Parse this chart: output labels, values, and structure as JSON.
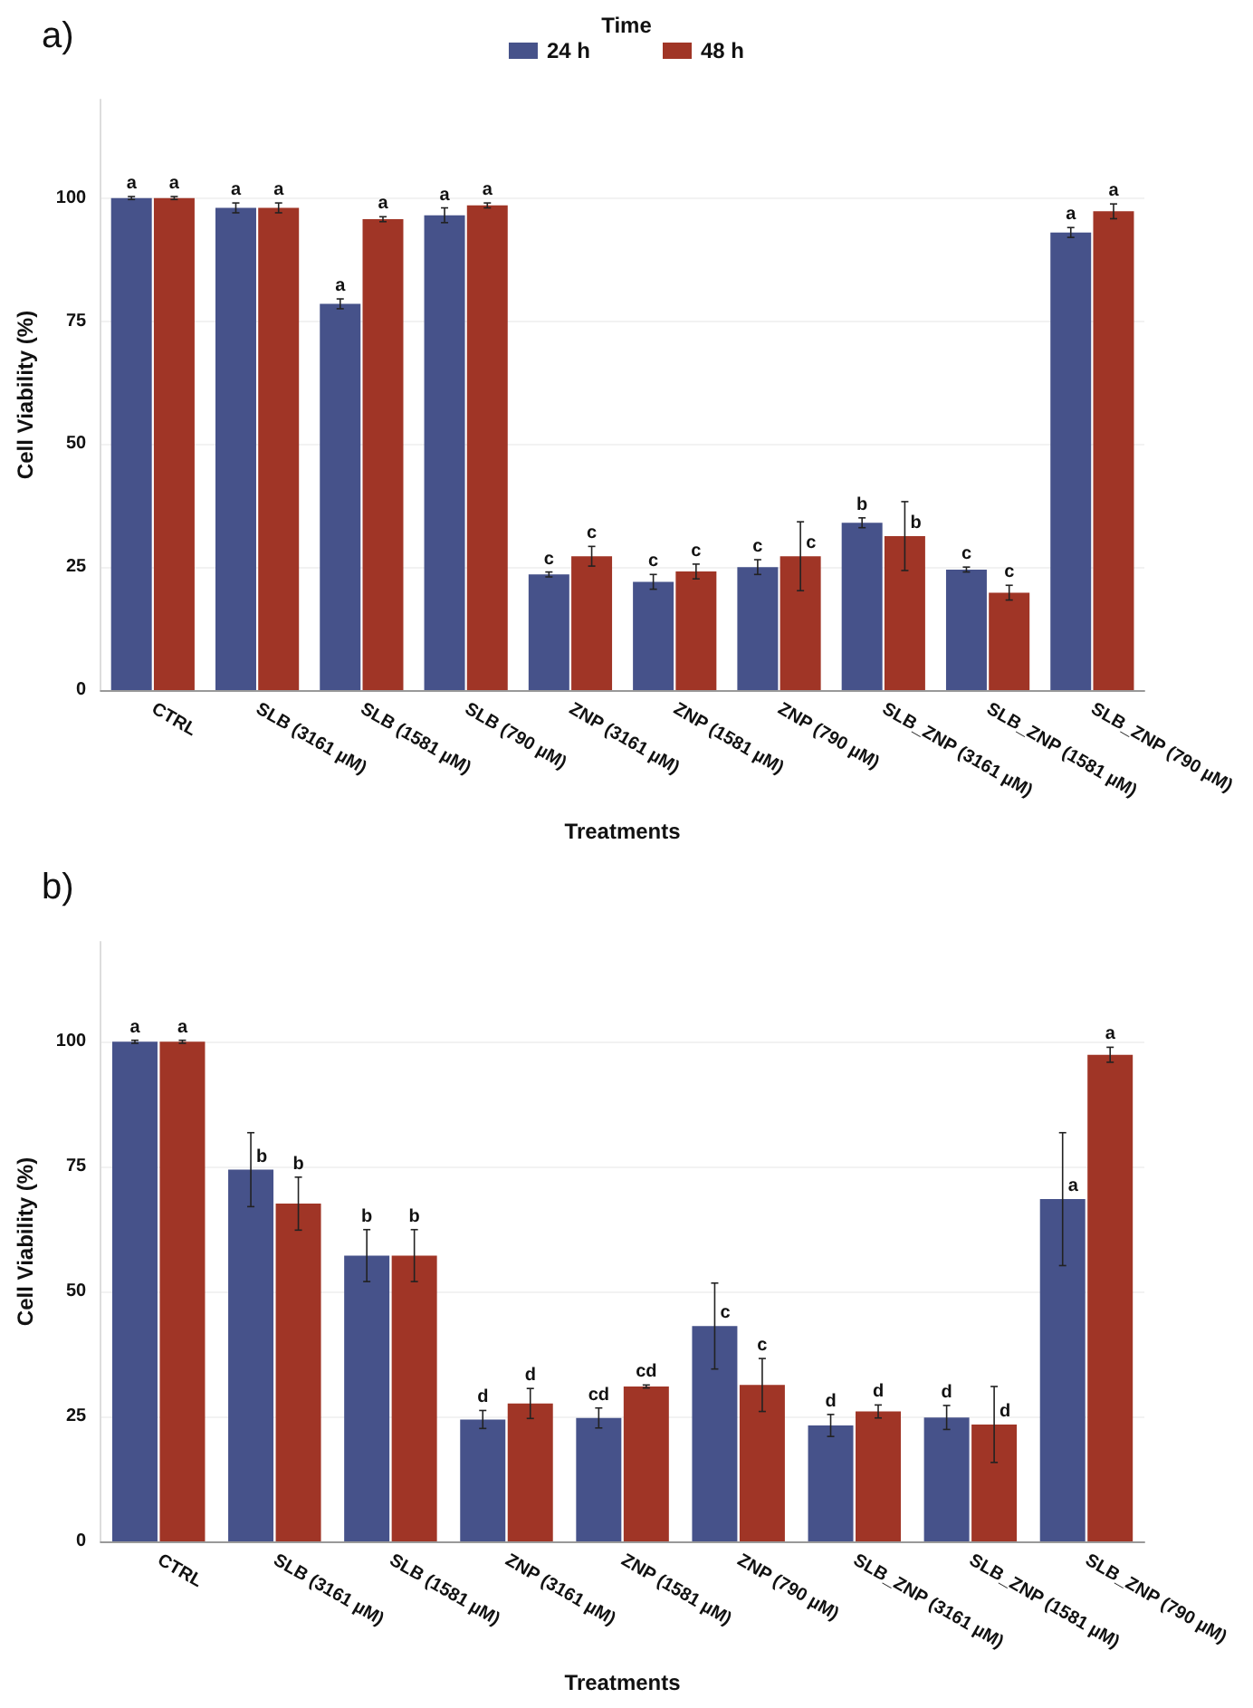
{
  "chart_data": [
    {
      "type": "bar",
      "title": "a)",
      "xlabel": "Treatments",
      "ylabel": "Cell Viability (%)",
      "legend_title": "Time",
      "legend": "top",
      "grid": "y",
      "categories": [
        "CTRL",
        "SLB (3161 µM)",
        "SLB (1581 µM)",
        "SLB (790 µM)",
        "ZNP (3161 µM)",
        "ZNP (1581 µM)",
        "ZNP (790 µM)",
        "SLB_ZNP (3161 µM)",
        "SLB_ZNP (1581 µM)",
        "SLB_ZNP (790 µM)"
      ],
      "ylim": [
        0,
        120
      ],
      "yticks": [
        0,
        25,
        50,
        75,
        100
      ],
      "series": [
        {
          "name": "24 h",
          "color": "#46528a",
          "values": [
            100,
            98,
            78.5,
            96.5,
            23.5,
            22,
            25,
            34,
            24.5,
            93
          ],
          "errors": [
            0.3,
            1,
            1,
            1.5,
            0.5,
            1.5,
            1.5,
            1,
            0.5,
            1
          ],
          "value_labels": [
            "a",
            "a",
            "a",
            "a",
            "c",
            "c",
            "c",
            "b",
            "c",
            "a"
          ]
        },
        {
          "name": "48 h",
          "color": "#a03526",
          "values": [
            100,
            98,
            95.7,
            98.5,
            27.2,
            24.1,
            27.2,
            31.3,
            19.8,
            97.3
          ],
          "errors": [
            0.3,
            1,
            0.5,
            0.5,
            2,
            1.5,
            7,
            7,
            1.5,
            1.5
          ],
          "value_labels": [
            "a",
            "a",
            "a",
            "a",
            "c",
            "c",
            "c",
            "b",
            "c",
            "a"
          ]
        }
      ]
    },
    {
      "type": "bar",
      "title": "b)",
      "xlabel": "Treatments",
      "ylabel": "Cell Viability (%)",
      "grid": "y",
      "categories": [
        "CTRL",
        "SLB (3161 µM)",
        "SLB (1581 µM)",
        "ZNP (3161 µM)",
        "ZNP (1581 µM)",
        "ZNP (790 µM)",
        "SLB_ZNP (3161 µM)",
        "SLB_ZNP (1581 µM)",
        "SLB_ZNP (790 µM)"
      ],
      "ylim": [
        0,
        120
      ],
      "yticks": [
        0,
        25,
        50,
        75,
        100
      ],
      "series": [
        {
          "color": "#46528a",
          "values": [
            100,
            74.4,
            57.2,
            24.4,
            24.7,
            43.1,
            23.2,
            24.8,
            68.5
          ],
          "errors": [
            0.3,
            7.4,
            5.2,
            1.8,
            2,
            8.6,
            2.2,
            2.4,
            13.3
          ],
          "value_labels": [
            "a",
            "b",
            "b",
            "d",
            "cd",
            "c",
            "d",
            "d",
            "a"
          ]
        },
        {
          "color": "#a03526",
          "values": [
            100,
            67.6,
            57.2,
            27.6,
            31,
            31.3,
            26,
            23.4,
            97.4
          ],
          "errors": [
            0.3,
            5.3,
            5.2,
            3,
            0.3,
            5.3,
            1.3,
            7.6,
            1.5
          ],
          "value_labels": [
            "a",
            "b",
            "b",
            "d",
            "cd",
            "c",
            "d",
            "d",
            "a"
          ]
        }
      ]
    }
  ]
}
